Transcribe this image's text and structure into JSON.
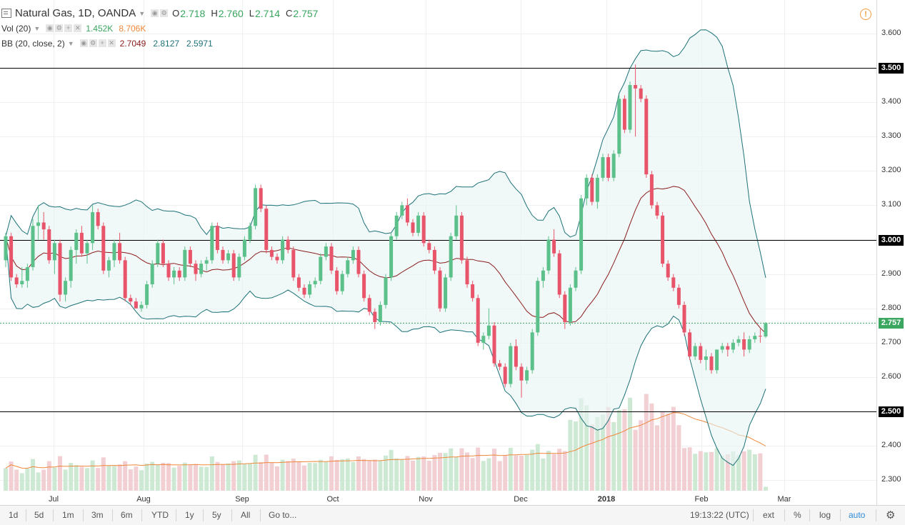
{
  "legend": {
    "symbol": "Natural Gas, 1D, OANDA",
    "ohlc": [
      {
        "label": "O",
        "value": "2.718"
      },
      {
        "label": "H",
        "value": "2.760"
      },
      {
        "label": "L",
        "value": "2.714"
      },
      {
        "label": "C",
        "value": "2.757"
      }
    ],
    "vol_label": "Vol (20)",
    "vol_value": "1.452K",
    "vol_ma": "8.706K",
    "bb_label": "BB (20, close, 2)",
    "bb_basis": "2.7049",
    "bb_upper": "2.8127",
    "bb_lower": "2.5971"
  },
  "alert_icon": "alert-icon",
  "price_axis": {
    "ticks": [
      "3.600",
      "3.400",
      "3.300",
      "3.200",
      "3.100",
      "2.900",
      "2.800",
      "2.700",
      "2.600",
      "2.400",
      "2.300"
    ],
    "highlighted": [
      "3.500",
      "3.000",
      "2.500"
    ],
    "last_price": "2.757",
    "last_price_color": "#3aa65f"
  },
  "time_axis": [
    "Jul",
    "Aug",
    "Sep",
    "Oct",
    "Nov",
    "Dec",
    "2018",
    "Feb",
    "Mar"
  ],
  "horizontal_levels": [
    3.5,
    3.0,
    2.5
  ],
  "colors": {
    "up": "#5cc08a",
    "down": "#e8556a",
    "band": "#1d7278",
    "basis": "#8a1c1c",
    "vol_ma": "#f0883b"
  },
  "toolbar": {
    "ranges": [
      "1d",
      "5d",
      "1m",
      "3m",
      "6m",
      "YTD",
      "1y",
      "5y",
      "All"
    ],
    "goto": "Go to...",
    "clock": "19:13:22 (UTC)",
    "ext": "ext",
    "percent": "%",
    "log": "log",
    "auto": "auto",
    "settings_icon": "gear-icon"
  },
  "chart_data": {
    "type": "candlestick",
    "instrument": "Natural Gas",
    "timeframe": "1D",
    "ylim": [
      2.28,
      3.66
    ],
    "candles": [
      [
        2.94,
        3.02,
        2.92,
        3.01
      ],
      [
        3.01,
        3.02,
        2.88,
        2.89
      ],
      [
        2.89,
        2.9,
        2.86,
        2.87
      ],
      [
        2.87,
        2.92,
        2.86,
        2.88
      ],
      [
        2.88,
        2.93,
        2.86,
        2.92
      ],
      [
        2.92,
        3.06,
        2.91,
        3.04
      ],
      [
        3.04,
        3.1,
        3.0,
        3.05
      ],
      [
        3.05,
        3.08,
        3.0,
        3.03
      ],
      [
        3.03,
        3.04,
        2.93,
        2.94
      ],
      [
        2.94,
        3.0,
        2.9,
        2.99
      ],
      [
        2.99,
        3.0,
        2.82,
        2.84
      ],
      [
        2.84,
        2.89,
        2.82,
        2.88
      ],
      [
        2.88,
        2.98,
        2.86,
        2.97
      ],
      [
        2.97,
        3.03,
        2.93,
        3.02
      ],
      [
        3.02,
        3.04,
        2.95,
        2.96
      ],
      [
        2.96,
        3.0,
        2.93,
        2.99
      ],
      [
        2.99,
        3.1,
        2.97,
        3.08
      ],
      [
        3.08,
        3.09,
        3.03,
        3.04
      ],
      [
        3.04,
        3.05,
        2.9,
        2.91
      ],
      [
        2.91,
        2.95,
        2.89,
        2.94
      ],
      [
        2.94,
        3.0,
        2.92,
        2.99
      ],
      [
        2.99,
        3.02,
        2.93,
        2.94
      ],
      [
        2.94,
        2.95,
        2.82,
        2.83
      ],
      [
        2.83,
        2.84,
        2.81,
        2.82
      ],
      [
        2.82,
        2.83,
        2.8,
        2.8
      ],
      [
        2.8,
        2.82,
        2.79,
        2.81
      ],
      [
        2.81,
        2.88,
        2.8,
        2.87
      ],
      [
        2.87,
        2.94,
        2.86,
        2.93
      ],
      [
        2.93,
        3.0,
        2.92,
        2.99
      ],
      [
        2.99,
        3.0,
        2.92,
        2.93
      ],
      [
        2.93,
        2.94,
        2.88,
        2.89
      ],
      [
        2.89,
        2.92,
        2.87,
        2.91
      ],
      [
        2.91,
        2.92,
        2.88,
        2.89
      ],
      [
        2.89,
        2.98,
        2.88,
        2.97
      ],
      [
        2.97,
        2.98,
        2.92,
        2.93
      ],
      [
        2.93,
        2.94,
        2.88,
        2.9
      ],
      [
        2.9,
        2.94,
        2.89,
        2.93
      ],
      [
        2.93,
        2.95,
        2.91,
        2.94
      ],
      [
        2.94,
        3.05,
        2.93,
        3.04
      ],
      [
        3.04,
        3.05,
        2.96,
        2.97
      ],
      [
        2.97,
        2.98,
        2.93,
        2.94
      ],
      [
        2.94,
        2.97,
        2.93,
        2.96
      ],
      [
        2.96,
        2.97,
        2.88,
        2.89
      ],
      [
        2.89,
        2.96,
        2.88,
        2.95
      ],
      [
        2.95,
        3.01,
        2.94,
        3.0
      ],
      [
        3.0,
        3.05,
        2.99,
        3.04
      ],
      [
        3.04,
        3.16,
        3.03,
        3.15
      ],
      [
        3.15,
        3.16,
        3.08,
        3.09
      ],
      [
        3.09,
        3.1,
        2.96,
        2.97
      ],
      [
        2.97,
        2.98,
        2.94,
        2.95
      ],
      [
        2.95,
        2.96,
        2.93,
        2.94
      ],
      [
        2.94,
        3.01,
        2.93,
        3.0
      ],
      [
        3.0,
        3.01,
        2.96,
        2.97
      ],
      [
        2.97,
        2.98,
        2.88,
        2.89
      ],
      [
        2.89,
        2.9,
        2.85,
        2.86
      ],
      [
        2.86,
        2.87,
        2.83,
        2.84
      ],
      [
        2.84,
        2.88,
        2.83,
        2.87
      ],
      [
        2.87,
        2.89,
        2.86,
        2.88
      ],
      [
        2.88,
        2.96,
        2.87,
        2.95
      ],
      [
        2.95,
        2.99,
        2.94,
        2.98
      ],
      [
        2.98,
        2.99,
        2.9,
        2.91
      ],
      [
        2.91,
        2.92,
        2.84,
        2.85
      ],
      [
        2.85,
        2.91,
        2.84,
        2.9
      ],
      [
        2.9,
        2.95,
        2.89,
        2.94
      ],
      [
        2.94,
        2.98,
        2.93,
        2.97
      ],
      [
        2.97,
        2.98,
        2.89,
        2.9
      ],
      [
        2.9,
        2.91,
        2.82,
        2.83
      ],
      [
        2.83,
        2.84,
        2.78,
        2.79
      ],
      [
        2.79,
        2.8,
        2.74,
        2.76
      ],
      [
        2.76,
        2.82,
        2.75,
        2.81
      ],
      [
        2.81,
        2.9,
        2.8,
        2.89
      ],
      [
        2.89,
        3.02,
        2.88,
        3.01
      ],
      [
        3.01,
        3.08,
        3.0,
        3.07
      ],
      [
        3.07,
        3.11,
        3.06,
        3.1
      ],
      [
        3.1,
        3.12,
        3.04,
        3.05
      ],
      [
        3.05,
        3.06,
        3.01,
        3.02
      ],
      [
        3.02,
        3.08,
        3.01,
        3.07
      ],
      [
        3.07,
        3.08,
        2.98,
        2.99
      ],
      [
        2.99,
        3.0,
        2.96,
        2.97
      ],
      [
        2.97,
        2.98,
        2.9,
        2.91
      ],
      [
        2.91,
        2.92,
        2.79,
        2.8
      ],
      [
        2.8,
        2.9,
        2.79,
        2.89
      ],
      [
        2.89,
        3.02,
        2.88,
        3.01
      ],
      [
        3.01,
        3.1,
        3.0,
        3.07
      ],
      [
        3.07,
        3.08,
        2.93,
        2.94
      ],
      [
        2.94,
        2.95,
        2.86,
        2.87
      ],
      [
        2.87,
        2.88,
        2.82,
        2.83
      ],
      [
        2.83,
        2.84,
        2.69,
        2.7
      ],
      [
        2.7,
        2.73,
        2.68,
        2.72
      ],
      [
        2.72,
        2.8,
        2.71,
        2.75
      ],
      [
        2.75,
        2.76,
        2.63,
        2.64
      ],
      [
        2.64,
        2.65,
        2.62,
        2.63
      ],
      [
        2.63,
        2.64,
        2.57,
        2.58
      ],
      [
        2.58,
        2.7,
        2.57,
        2.69
      ],
      [
        2.69,
        2.71,
        2.62,
        2.63
      ],
      [
        2.63,
        2.64,
        2.54,
        2.59
      ],
      [
        2.59,
        2.63,
        2.58,
        2.62
      ],
      [
        2.62,
        2.74,
        2.61,
        2.73
      ],
      [
        2.73,
        2.89,
        2.72,
        2.88
      ],
      [
        2.88,
        2.92,
        2.86,
        2.91
      ],
      [
        2.91,
        3.01,
        2.9,
        3.0
      ],
      [
        3.0,
        3.03,
        2.95,
        2.96
      ],
      [
        2.96,
        2.97,
        2.83,
        2.84
      ],
      [
        2.84,
        2.85,
        2.74,
        2.76
      ],
      [
        2.76,
        2.87,
        2.75,
        2.86
      ],
      [
        2.86,
        2.92,
        2.85,
        2.91
      ],
      [
        2.91,
        3.13,
        2.9,
        3.12
      ],
      [
        3.12,
        3.19,
        3.1,
        3.18
      ],
      [
        3.18,
        3.19,
        3.1,
        3.11
      ],
      [
        3.11,
        3.19,
        3.09,
        3.18
      ],
      [
        3.18,
        3.25,
        3.17,
        3.24
      ],
      [
        3.24,
        3.25,
        3.17,
        3.18
      ],
      [
        3.18,
        3.26,
        3.17,
        3.25
      ],
      [
        3.25,
        3.42,
        3.24,
        3.41
      ],
      [
        3.41,
        3.42,
        3.31,
        3.32
      ],
      [
        3.32,
        3.46,
        3.31,
        3.45
      ],
      [
        3.45,
        3.51,
        3.3,
        3.44
      ],
      [
        3.44,
        3.45,
        3.4,
        3.41
      ],
      [
        3.41,
        3.42,
        3.18,
        3.19
      ],
      [
        3.19,
        3.2,
        3.09,
        3.1
      ],
      [
        3.1,
        3.11,
        3.06,
        3.07
      ],
      [
        3.07,
        3.08,
        2.92,
        2.93
      ],
      [
        2.93,
        2.94,
        2.88,
        2.89
      ],
      [
        2.89,
        2.9,
        2.85,
        2.86
      ],
      [
        2.86,
        2.87,
        2.8,
        2.81
      ],
      [
        2.81,
        2.82,
        2.72,
        2.73
      ],
      [
        2.73,
        2.74,
        2.65,
        2.66
      ],
      [
        2.66,
        2.7,
        2.65,
        2.69
      ],
      [
        2.69,
        2.7,
        2.64,
        2.65
      ],
      [
        2.65,
        2.68,
        2.62,
        2.66
      ],
      [
        2.66,
        2.67,
        2.61,
        2.62
      ],
      [
        2.62,
        2.68,
        2.61,
        2.68
      ],
      [
        2.68,
        2.7,
        2.67,
        2.69
      ],
      [
        2.69,
        2.7,
        2.66,
        2.68
      ],
      [
        2.68,
        2.71,
        2.67,
        2.7
      ],
      [
        2.7,
        2.72,
        2.69,
        2.71
      ],
      [
        2.71,
        2.73,
        2.66,
        2.68
      ],
      [
        2.68,
        2.72,
        2.67,
        2.71
      ],
      [
        2.71,
        2.73,
        2.7,
        2.72
      ],
      [
        2.72,
        2.74,
        2.7,
        2.718
      ],
      [
        2.718,
        2.76,
        2.714,
        2.757
      ]
    ]
  }
}
